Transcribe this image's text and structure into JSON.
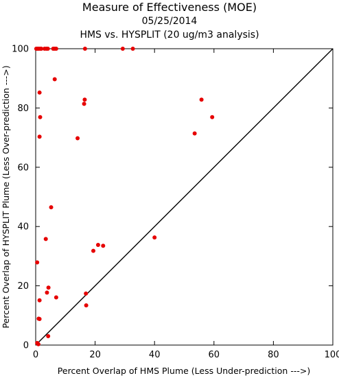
{
  "chart_data": {
    "type": "scatter",
    "title": "Measure of Effectiveness (MOE)",
    "subtitle": "05/25/2014",
    "subtitle2": "HMS vs. HYSPLIT  (20 ug/m3 analysis)",
    "xlabel": "Percent Overlap of HMS Plume (Less Under-prediction --->)",
    "ylabel": "Percent Overlap of HYSPLIT Plume (Less Over-prediction --->)",
    "xlim": [
      0,
      100
    ],
    "ylim": [
      0,
      100
    ],
    "xticks": [
      0,
      20,
      40,
      60,
      80,
      100
    ],
    "yticks": [
      0,
      20,
      40,
      60,
      80,
      100
    ],
    "grid": false,
    "reference_line": "diagonal y = x",
    "point_color": "#e60000",
    "points": [
      [
        0.2,
        100
      ],
      [
        0.6,
        100
      ],
      [
        1.0,
        100
      ],
      [
        1.5,
        100
      ],
      [
        1.9,
        100
      ],
      [
        3.0,
        100
      ],
      [
        3.6,
        100
      ],
      [
        4.1,
        100
      ],
      [
        5.9,
        100
      ],
      [
        6.4,
        100
      ],
      [
        6.9,
        100
      ],
      [
        16.6,
        100
      ],
      [
        29.3,
        100
      ],
      [
        32.7,
        100
      ],
      [
        6.4,
        89.7
      ],
      [
        1.3,
        85.2
      ],
      [
        16.5,
        82.8
      ],
      [
        16.3,
        81.4
      ],
      [
        1.5,
        76.9
      ],
      [
        1.3,
        70.3
      ],
      [
        14.1,
        69.8
      ],
      [
        55.8,
        82.8
      ],
      [
        59.4,
        76.9
      ],
      [
        53.5,
        71.4
      ],
      [
        5.2,
        46.5
      ],
      [
        40.0,
        36.3
      ],
      [
        3.4,
        35.8
      ],
      [
        21.0,
        33.8
      ],
      [
        22.7,
        33.5
      ],
      [
        19.4,
        31.8
      ],
      [
        0.5,
        27.9
      ],
      [
        4.3,
        19.4
      ],
      [
        3.8,
        17.7
      ],
      [
        16.9,
        17.4
      ],
      [
        6.9,
        16.1
      ],
      [
        1.3,
        15.1
      ],
      [
        17.0,
        13.4
      ],
      [
        1.0,
        8.9
      ],
      [
        1.3,
        8.8
      ],
      [
        4.2,
        3.0
      ],
      [
        0.5,
        0.7
      ],
      [
        0.9,
        0.3
      ]
    ]
  }
}
